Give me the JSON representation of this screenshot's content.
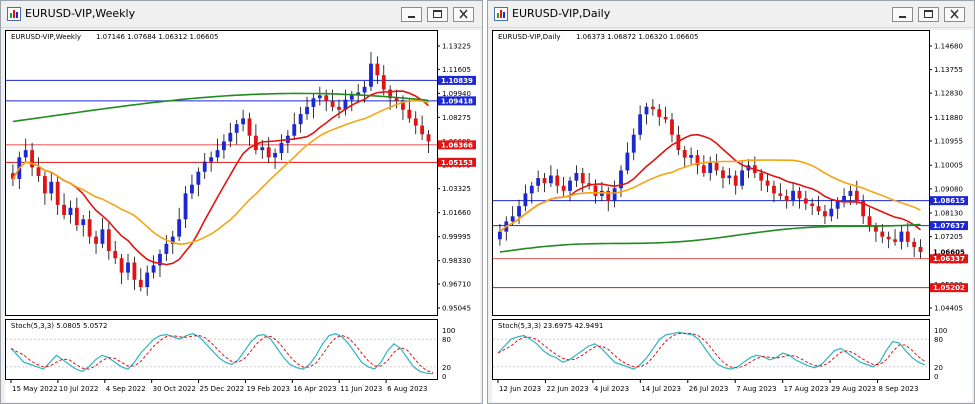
{
  "weekly": {
    "window_title": "EURUSD-VIP,Weekly",
    "header": {
      "symbol": "EURUSD-VIP,Weekly",
      "ohlc": "1.07146 1.07684 1.06312 1.06605"
    },
    "stoch_label": "Stoch(5,3,3) 5.0805 5.0572",
    "stoch_levels": [
      "100",
      "80",
      "20",
      "0"
    ],
    "price_ticks": [
      "1.13225",
      "1.11605",
      "1.09940",
      "1.08275",
      "1.06605",
      "1.04975",
      "1.03325",
      "1.01660",
      "0.99995",
      "0.98330",
      "0.96710",
      "0.95045"
    ],
    "price_markers": [
      "1.10839",
      "1.09418",
      "1.06366",
      "1.05153"
    ],
    "time_labels": [
      "15 May 2022",
      "10 Jul 2022",
      "4 Sep 2022",
      "30 Oct 2022",
      "25 Dec 2022",
      "19 Feb 2023",
      "16 Apr 2023",
      "11 Jun 2023",
      "6 Aug 2023"
    ]
  },
  "daily": {
    "window_title": "EURUSD-VIP,Daily",
    "header": {
      "symbol": "EURUSD-VIP,Daily",
      "ohlc": "1.06373 1.06872 1.06320 1.06605"
    },
    "stoch_label": "Stoch(5,3,3) 23.6975 42.9491",
    "stoch_levels": [
      "100",
      "80",
      "20",
      "0"
    ],
    "price_ticks": [
      "1.14680",
      "1.13755",
      "1.12830",
      "1.11880",
      "1.10955",
      "1.10005",
      "1.09080",
      "1.08130",
      "1.07205",
      "1.06255",
      "1.05330",
      "1.04405"
    ],
    "price_markers": [
      "1.08615",
      "1.07637",
      "1.06605",
      "1.06337",
      "1.05202"
    ],
    "time_labels": [
      "12 Jun 2023",
      "22 Jun 2023",
      "4 Jul 2023",
      "14 Jul 2023",
      "26 Jul 2023",
      "7 Aug 2023",
      "17 Aug 2023",
      "29 Aug 2023",
      "8 Sep 2023"
    ]
  },
  "colors": {
    "bull": "#1c28d2",
    "bear": "#e11414",
    "ma_fast": "#e11414",
    "ma_mid": "#f5a514",
    "ma_slow": "#228b22",
    "stoch_main": "#2cb5c0",
    "stoch_signal": "#e11414",
    "level_blue": "#1c28d2",
    "level_red": "#e11414"
  }
}
